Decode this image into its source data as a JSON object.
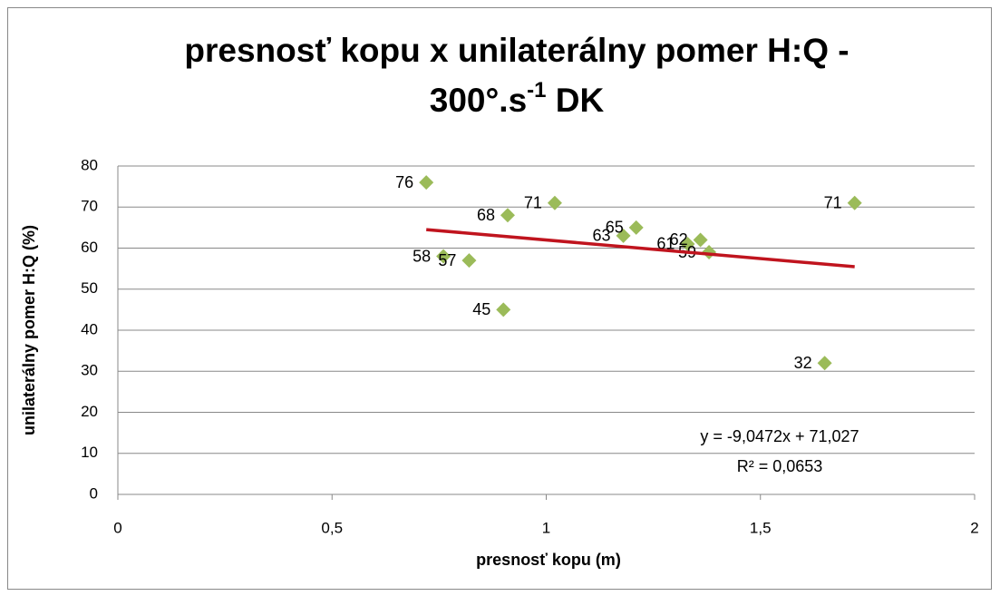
{
  "chart_data": {
    "type": "scatter",
    "title": {
      "line1": "presnosť kopu x unilaterálny pomer H:Q -",
      "line2_before": "300°.s",
      "superscript": "-1",
      "line2_after": " DK"
    },
    "x_label": "presnosť kopu (m)",
    "y_label": "unilaterálny pomer H:Q (%)",
    "series": [
      {
        "color": "#9bbb59",
        "x": [
          0.72,
          0.76,
          0.82,
          0.9,
          0.91,
          1.02,
          1.18,
          1.21,
          1.33,
          1.36,
          1.38,
          1.65,
          1.72
        ],
        "values": [
          76,
          58,
          57,
          45,
          68,
          71,
          63,
          65,
          61,
          62,
          59,
          32,
          71
        ]
      }
    ],
    "trendline": {
      "color": "#c0141e",
      "slope": -9.0472,
      "intercept": 71.027,
      "equation": "y = -9,0472x + 71,027",
      "r2_label": "R² = 0,0653"
    },
    "xlim": [
      0,
      2
    ],
    "xticks": [
      0,
      {
        "value": 0.5,
        "label": "0,5"
      },
      1,
      {
        "value": 1.5,
        "label": "1,5"
      },
      2
    ],
    "ylim": [
      0,
      80
    ],
    "yticks": [
      0,
      10,
      20,
      30,
      40,
      50,
      60,
      70,
      80
    ],
    "grid": true
  }
}
